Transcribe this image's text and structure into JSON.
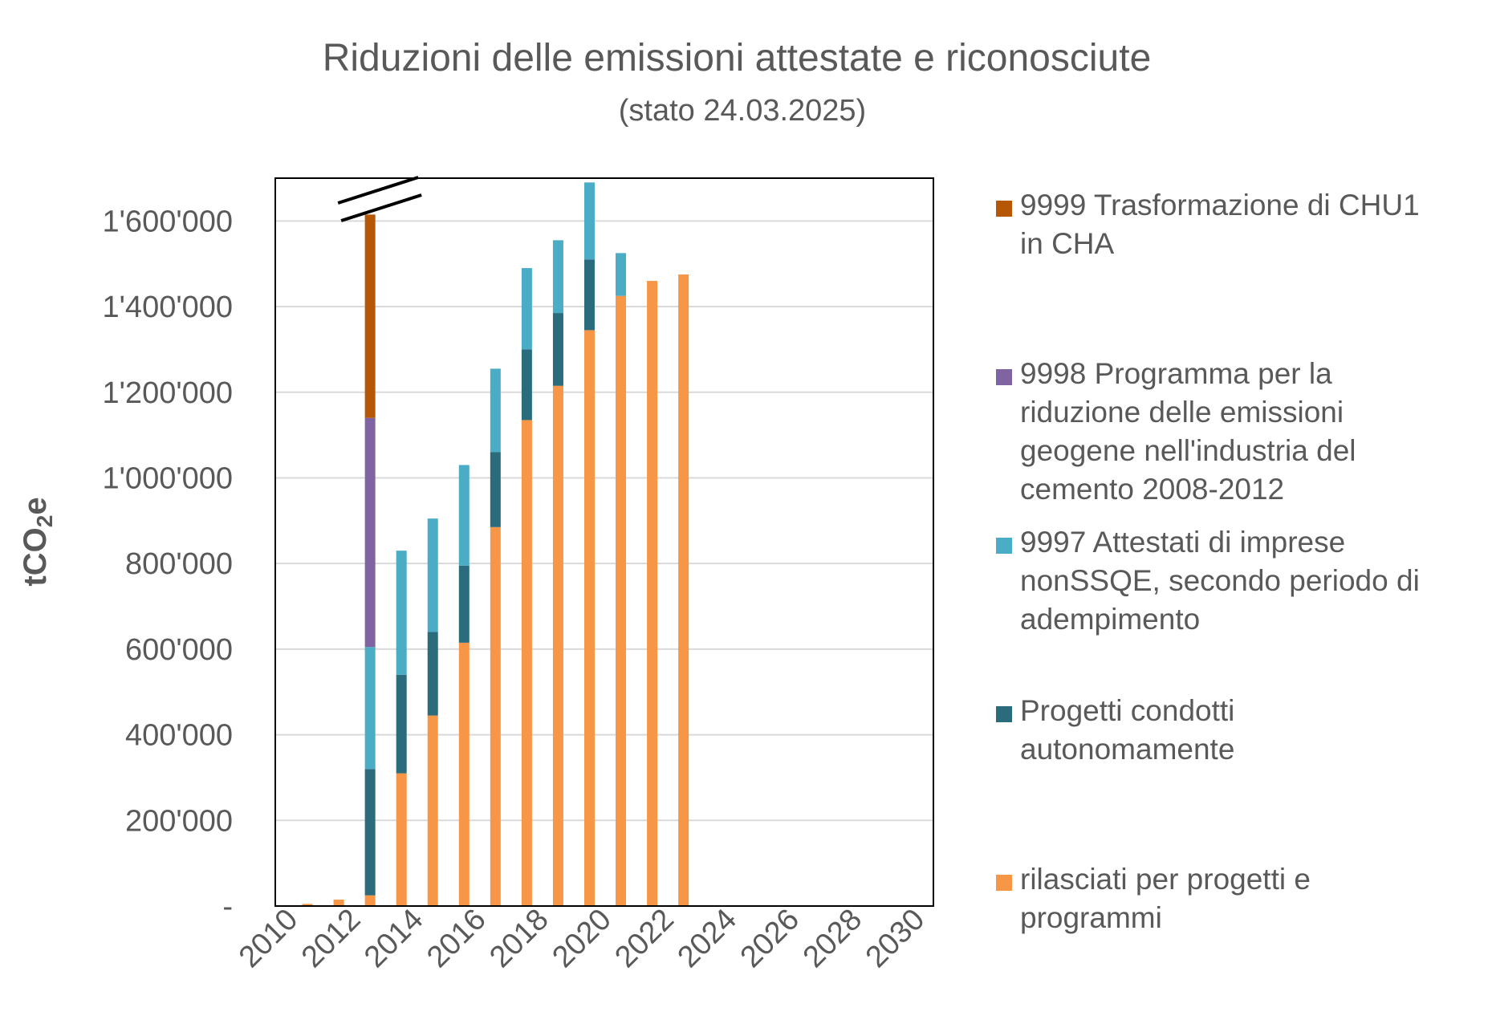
{
  "chart_data": {
    "type": "bar",
    "stacked": true,
    "title": "Riduzioni delle emissioni attestate e riconosciute",
    "subtitle": "(stato 24.03.2025)",
    "xlabel": "",
    "ylabel": "tCO2e",
    "ylabel_parts": {
      "main": "tCO",
      "sub": "2",
      "tail": "e"
    },
    "xlim": [
      2010,
      2031
    ],
    "x_ticks": [
      "2010",
      "2012",
      "2014",
      "2016",
      "2018",
      "2020",
      "2022",
      "2024",
      "2026",
      "2028",
      "2030"
    ],
    "ylim": [
      0,
      1700000
    ],
    "y_ticks": [
      {
        "value": 0,
        "label": "-"
      },
      {
        "value": 200000,
        "label": "200'000"
      },
      {
        "value": 400000,
        "label": "400'000"
      },
      {
        "value": 600000,
        "label": "600'000"
      },
      {
        "value": 800000,
        "label": "800'000"
      },
      {
        "value": 1000000,
        "label": "1'000'000"
      },
      {
        "value": 1200000,
        "label": "1'200'000"
      },
      {
        "value": 1400000,
        "label": "1'400'000"
      },
      {
        "value": 1600000,
        "label": "1'600'000"
      }
    ],
    "grid": true,
    "axis_break_on_year": 2013,
    "legend_position": "right",
    "categories": [
      2011,
      2012,
      2013,
      2014,
      2015,
      2016,
      2017,
      2018,
      2019,
      2020,
      2021,
      2022,
      2023
    ],
    "series": [
      {
        "name": "rilasciati per progetti e programmi",
        "color": "#F79646",
        "values": [
          5000,
          15000,
          25000,
          310000,
          445000,
          615000,
          885000,
          1135000,
          1215000,
          1345000,
          1425000,
          1460000,
          1475000
        ]
      },
      {
        "name": "Progetti condotti autonomamente",
        "color": "#2A6B7C",
        "values": [
          0,
          0,
          295000,
          230000,
          195000,
          180000,
          175000,
          165000,
          170000,
          165000,
          0,
          0,
          0
        ]
      },
      {
        "name": "9997 Attestati di imprese nonSSQE, secondo periodo di adempimento",
        "color": "#4BACC6",
        "values": [
          0,
          0,
          285000,
          290000,
          265000,
          235000,
          195000,
          190000,
          170000,
          180000,
          100000,
          0,
          0
        ]
      },
      {
        "name": "9998 Programma per la riduzione delle emissioni geogene nell'industria del cemento 2008-2012",
        "color": "#8064A2",
        "values": [
          0,
          0,
          535000,
          0,
          0,
          0,
          0,
          0,
          0,
          0,
          0,
          0,
          0
        ]
      },
      {
        "name": "9999 Trasformazione di CHU1 in CHA",
        "color": "#B65708",
        "values": [
          0,
          0,
          475000,
          0,
          0,
          0,
          0,
          0,
          0,
          0,
          0,
          0,
          0
        ]
      }
    ],
    "legend": [
      {
        "lines": [
          "9999 Trasformazione di CHU1",
          "in CHA"
        ],
        "color": "#B65708"
      },
      {
        "lines": [
          "9998 Programma per la",
          "riduzione delle emissioni",
          "geogene nell'industria del",
          "cemento 2008-2012"
        ],
        "color": "#8064A2"
      },
      {
        "lines": [
          "9997 Attestati di imprese",
          "nonSSQE, secondo periodo di",
          "adempimento"
        ],
        "color": "#4BACC6"
      },
      {
        "lines": [
          "Progetti condotti",
          "autonomamente"
        ],
        "color": "#2A6B7C"
      },
      {
        "lines": [
          "rilasciati per progetti e",
          "programmi"
        ],
        "color": "#F79646"
      }
    ]
  }
}
